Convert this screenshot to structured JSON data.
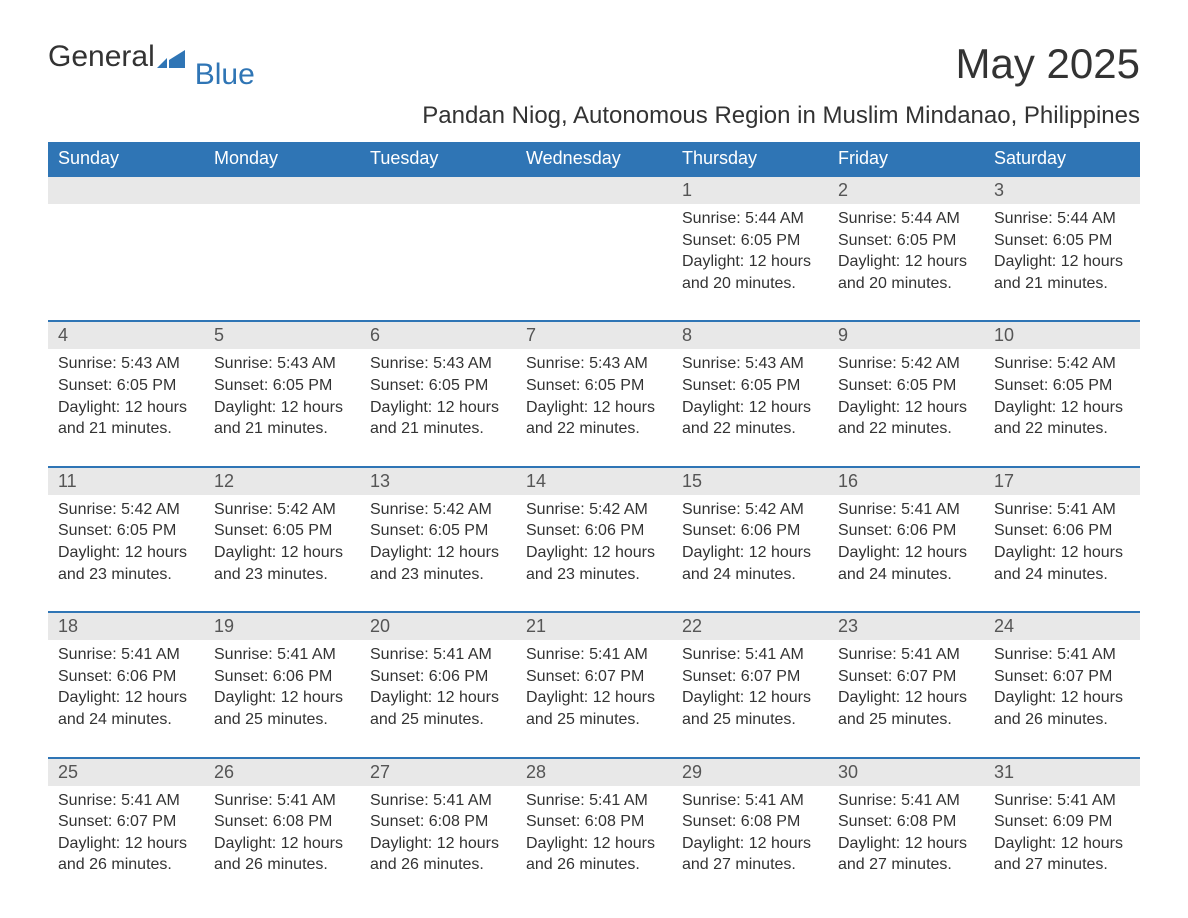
{
  "logo": {
    "part1": "General",
    "part2": "Blue"
  },
  "title": "May 2025",
  "location": "Pandan Niog, Autonomous Region in Muslim Mindanao, Philippines",
  "colors": {
    "header_bg": "#2f75b5",
    "header_text": "#ffffff",
    "daynum_bg": "#e8e8e8",
    "row_divider": "#2f75b5",
    "body_text": "#333333",
    "logo_accent": "#2f75b5"
  },
  "days_of_week": [
    "Sunday",
    "Monday",
    "Tuesday",
    "Wednesday",
    "Thursday",
    "Friday",
    "Saturday"
  ],
  "weeks": [
    [
      null,
      null,
      null,
      null,
      {
        "n": "1",
        "sr": "Sunrise: 5:44 AM",
        "ss": "Sunset: 6:05 PM",
        "dl": "Daylight: 12 hours and 20 minutes."
      },
      {
        "n": "2",
        "sr": "Sunrise: 5:44 AM",
        "ss": "Sunset: 6:05 PM",
        "dl": "Daylight: 12 hours and 20 minutes."
      },
      {
        "n": "3",
        "sr": "Sunrise: 5:44 AM",
        "ss": "Sunset: 6:05 PM",
        "dl": "Daylight: 12 hours and 21 minutes."
      }
    ],
    [
      {
        "n": "4",
        "sr": "Sunrise: 5:43 AM",
        "ss": "Sunset: 6:05 PM",
        "dl": "Daylight: 12 hours and 21 minutes."
      },
      {
        "n": "5",
        "sr": "Sunrise: 5:43 AM",
        "ss": "Sunset: 6:05 PM",
        "dl": "Daylight: 12 hours and 21 minutes."
      },
      {
        "n": "6",
        "sr": "Sunrise: 5:43 AM",
        "ss": "Sunset: 6:05 PM",
        "dl": "Daylight: 12 hours and 21 minutes."
      },
      {
        "n": "7",
        "sr": "Sunrise: 5:43 AM",
        "ss": "Sunset: 6:05 PM",
        "dl": "Daylight: 12 hours and 22 minutes."
      },
      {
        "n": "8",
        "sr": "Sunrise: 5:43 AM",
        "ss": "Sunset: 6:05 PM",
        "dl": "Daylight: 12 hours and 22 minutes."
      },
      {
        "n": "9",
        "sr": "Sunrise: 5:42 AM",
        "ss": "Sunset: 6:05 PM",
        "dl": "Daylight: 12 hours and 22 minutes."
      },
      {
        "n": "10",
        "sr": "Sunrise: 5:42 AM",
        "ss": "Sunset: 6:05 PM",
        "dl": "Daylight: 12 hours and 22 minutes."
      }
    ],
    [
      {
        "n": "11",
        "sr": "Sunrise: 5:42 AM",
        "ss": "Sunset: 6:05 PM",
        "dl": "Daylight: 12 hours and 23 minutes."
      },
      {
        "n": "12",
        "sr": "Sunrise: 5:42 AM",
        "ss": "Sunset: 6:05 PM",
        "dl": "Daylight: 12 hours and 23 minutes."
      },
      {
        "n": "13",
        "sr": "Sunrise: 5:42 AM",
        "ss": "Sunset: 6:05 PM",
        "dl": "Daylight: 12 hours and 23 minutes."
      },
      {
        "n": "14",
        "sr": "Sunrise: 5:42 AM",
        "ss": "Sunset: 6:06 PM",
        "dl": "Daylight: 12 hours and 23 minutes."
      },
      {
        "n": "15",
        "sr": "Sunrise: 5:42 AM",
        "ss": "Sunset: 6:06 PM",
        "dl": "Daylight: 12 hours and 24 minutes."
      },
      {
        "n": "16",
        "sr": "Sunrise: 5:41 AM",
        "ss": "Sunset: 6:06 PM",
        "dl": "Daylight: 12 hours and 24 minutes."
      },
      {
        "n": "17",
        "sr": "Sunrise: 5:41 AM",
        "ss": "Sunset: 6:06 PM",
        "dl": "Daylight: 12 hours and 24 minutes."
      }
    ],
    [
      {
        "n": "18",
        "sr": "Sunrise: 5:41 AM",
        "ss": "Sunset: 6:06 PM",
        "dl": "Daylight: 12 hours and 24 minutes."
      },
      {
        "n": "19",
        "sr": "Sunrise: 5:41 AM",
        "ss": "Sunset: 6:06 PM",
        "dl": "Daylight: 12 hours and 25 minutes."
      },
      {
        "n": "20",
        "sr": "Sunrise: 5:41 AM",
        "ss": "Sunset: 6:06 PM",
        "dl": "Daylight: 12 hours and 25 minutes."
      },
      {
        "n": "21",
        "sr": "Sunrise: 5:41 AM",
        "ss": "Sunset: 6:07 PM",
        "dl": "Daylight: 12 hours and 25 minutes."
      },
      {
        "n": "22",
        "sr": "Sunrise: 5:41 AM",
        "ss": "Sunset: 6:07 PM",
        "dl": "Daylight: 12 hours and 25 minutes."
      },
      {
        "n": "23",
        "sr": "Sunrise: 5:41 AM",
        "ss": "Sunset: 6:07 PM",
        "dl": "Daylight: 12 hours and 25 minutes."
      },
      {
        "n": "24",
        "sr": "Sunrise: 5:41 AM",
        "ss": "Sunset: 6:07 PM",
        "dl": "Daylight: 12 hours and 26 minutes."
      }
    ],
    [
      {
        "n": "25",
        "sr": "Sunrise: 5:41 AM",
        "ss": "Sunset: 6:07 PM",
        "dl": "Daylight: 12 hours and 26 minutes."
      },
      {
        "n": "26",
        "sr": "Sunrise: 5:41 AM",
        "ss": "Sunset: 6:08 PM",
        "dl": "Daylight: 12 hours and 26 minutes."
      },
      {
        "n": "27",
        "sr": "Sunrise: 5:41 AM",
        "ss": "Sunset: 6:08 PM",
        "dl": "Daylight: 12 hours and 26 minutes."
      },
      {
        "n": "28",
        "sr": "Sunrise: 5:41 AM",
        "ss": "Sunset: 6:08 PM",
        "dl": "Daylight: 12 hours and 26 minutes."
      },
      {
        "n": "29",
        "sr": "Sunrise: 5:41 AM",
        "ss": "Sunset: 6:08 PM",
        "dl": "Daylight: 12 hours and 27 minutes."
      },
      {
        "n": "30",
        "sr": "Sunrise: 5:41 AM",
        "ss": "Sunset: 6:08 PM",
        "dl": "Daylight: 12 hours and 27 minutes."
      },
      {
        "n": "31",
        "sr": "Sunrise: 5:41 AM",
        "ss": "Sunset: 6:09 PM",
        "dl": "Daylight: 12 hours and 27 minutes."
      }
    ]
  ]
}
